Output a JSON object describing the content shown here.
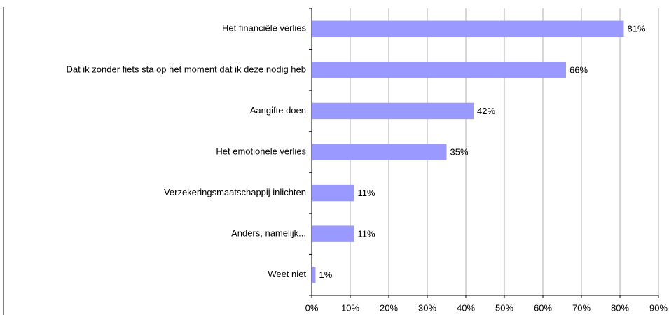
{
  "chart_data": {
    "type": "bar",
    "orientation": "horizontal",
    "categories": [
      "Het financiële verlies",
      "Dat ik zonder fiets sta op het moment dat ik deze nodig heb",
      "Aangifte doen",
      "Het emotionele verlies",
      "Verzekeringsmaatschappij inlichten",
      "Anders, namelijk...",
      "Weet niet"
    ],
    "values": [
      81,
      66,
      42,
      35,
      11,
      11,
      1
    ],
    "value_labels": [
      "81%",
      "66%",
      "42%",
      "35%",
      "11%",
      "11%",
      "1%"
    ],
    "color": "#9999ff",
    "xlim": [
      0,
      90
    ],
    "xticks": [
      {
        "value": 0,
        "label": "0%"
      },
      {
        "value": 10,
        "label": "10%"
      },
      {
        "value": 20,
        "label": "20%"
      },
      {
        "value": 30,
        "label": "30%"
      },
      {
        "value": 40,
        "label": "40%"
      },
      {
        "value": 50,
        "label": "50%"
      },
      {
        "value": 60,
        "label": "60%"
      },
      {
        "value": 70,
        "label": "70%"
      },
      {
        "value": 80,
        "label": "80%"
      },
      {
        "value": 90,
        "label": "90%"
      }
    ],
    "grid": true
  }
}
